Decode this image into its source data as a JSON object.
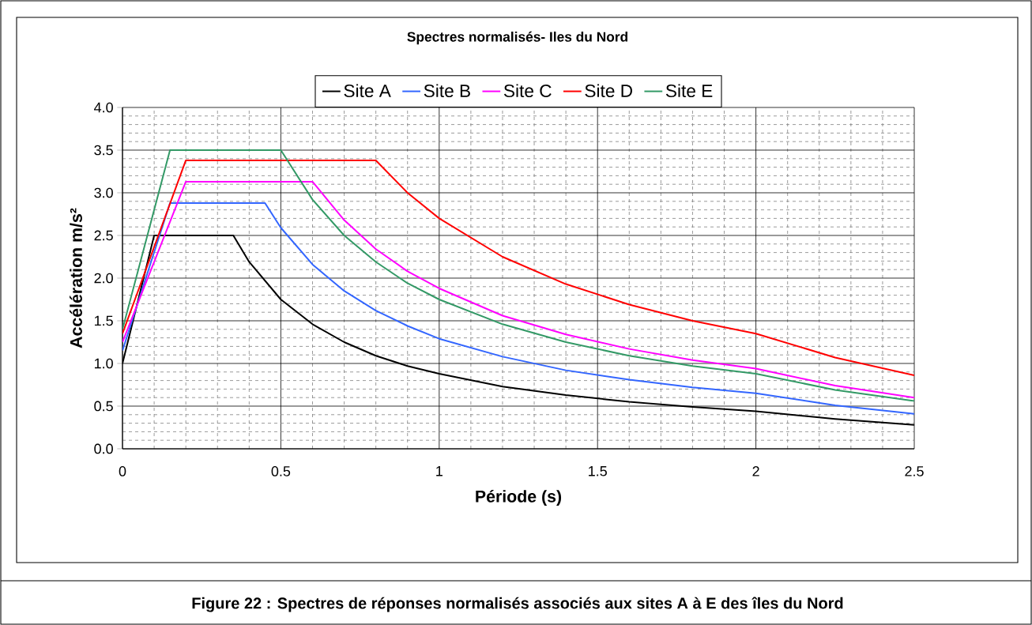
{
  "chart_data": {
    "type": "line",
    "title": "Spectres  normalisés- Iles du Nord",
    "xlabel": "Période (s)",
    "ylabel": "Accélération m/s²",
    "annotations": [
      "Figure 22 : Spectres de réponses normalisés associés aux sites A à E des îles du Nord"
    ],
    "xlim": [
      0,
      2.5
    ],
    "ylim": [
      0,
      4
    ],
    "xticks": [
      0,
      0.5,
      1,
      1.5,
      2,
      2.5
    ],
    "yticks": [
      {
        "value": 0,
        "label": "0.0"
      },
      {
        "value": 0.5,
        "label": "0.5"
      },
      {
        "value": 1,
        "label": "1.0"
      },
      {
        "value": 1.5,
        "label": "1.5"
      },
      {
        "value": 2,
        "label": "2.0"
      },
      {
        "value": 2.5,
        "label": "2.5"
      },
      {
        "value": 3,
        "label": "3.0"
      },
      {
        "value": 3.5,
        "label": "3.5"
      },
      {
        "value": 4,
        "label": "4.0"
      }
    ],
    "grid": true,
    "legend": "top",
    "marker": "none",
    "line_style": "solid",
    "series": [
      {
        "name": "Site A",
        "color": "#000000",
        "x": [
          0,
          0.1,
          0.35,
          0.4,
          0.5,
          0.6,
          0.7,
          0.8,
          0.9,
          1.0,
          1.2,
          1.4,
          1.6,
          1.8,
          2.0,
          2.25,
          2.5
        ],
        "values": [
          1.0,
          2.5,
          2.5,
          2.19,
          1.75,
          1.46,
          1.25,
          1.09,
          0.97,
          0.88,
          0.73,
          0.63,
          0.55,
          0.49,
          0.44,
          0.35,
          0.28
        ]
      },
      {
        "name": "Site B",
        "color": "#3366ff",
        "x": [
          0,
          0.15,
          0.45,
          0.5,
          0.6,
          0.7,
          0.8,
          0.9,
          1.0,
          1.2,
          1.4,
          1.6,
          1.8,
          2.0,
          2.25,
          2.5
        ],
        "values": [
          1.15,
          2.88,
          2.88,
          2.59,
          2.16,
          1.85,
          1.62,
          1.44,
          1.29,
          1.08,
          0.92,
          0.81,
          0.72,
          0.65,
          0.51,
          0.41
        ]
      },
      {
        "name": "Site C",
        "color": "#ff00ff",
        "x": [
          0,
          0.2,
          0.6,
          0.7,
          0.8,
          0.9,
          1.0,
          1.2,
          1.4,
          1.6,
          1.8,
          2.0,
          2.25,
          2.5
        ],
        "values": [
          1.25,
          3.13,
          3.13,
          2.68,
          2.34,
          2.08,
          1.88,
          1.56,
          1.34,
          1.17,
          1.04,
          0.94,
          0.74,
          0.6
        ]
      },
      {
        "name": "Site D",
        "color": "#ff0000",
        "x": [
          0,
          0.2,
          0.8,
          0.9,
          1.0,
          1.2,
          1.4,
          1.6,
          1.8,
          2.0,
          2.25,
          2.5
        ],
        "values": [
          1.35,
          3.38,
          3.38,
          3.0,
          2.7,
          2.25,
          1.93,
          1.69,
          1.5,
          1.35,
          1.07,
          0.86
        ]
      },
      {
        "name": "Site E",
        "color": "#339966",
        "x": [
          0,
          0.15,
          0.5,
          0.6,
          0.7,
          0.8,
          0.9,
          1.0,
          1.2,
          1.4,
          1.6,
          1.8,
          2.0,
          2.25,
          2.5
        ],
        "values": [
          1.4,
          3.5,
          3.5,
          2.92,
          2.5,
          2.19,
          1.94,
          1.75,
          1.46,
          1.25,
          1.09,
          0.97,
          0.88,
          0.69,
          0.56
        ]
      }
    ]
  }
}
